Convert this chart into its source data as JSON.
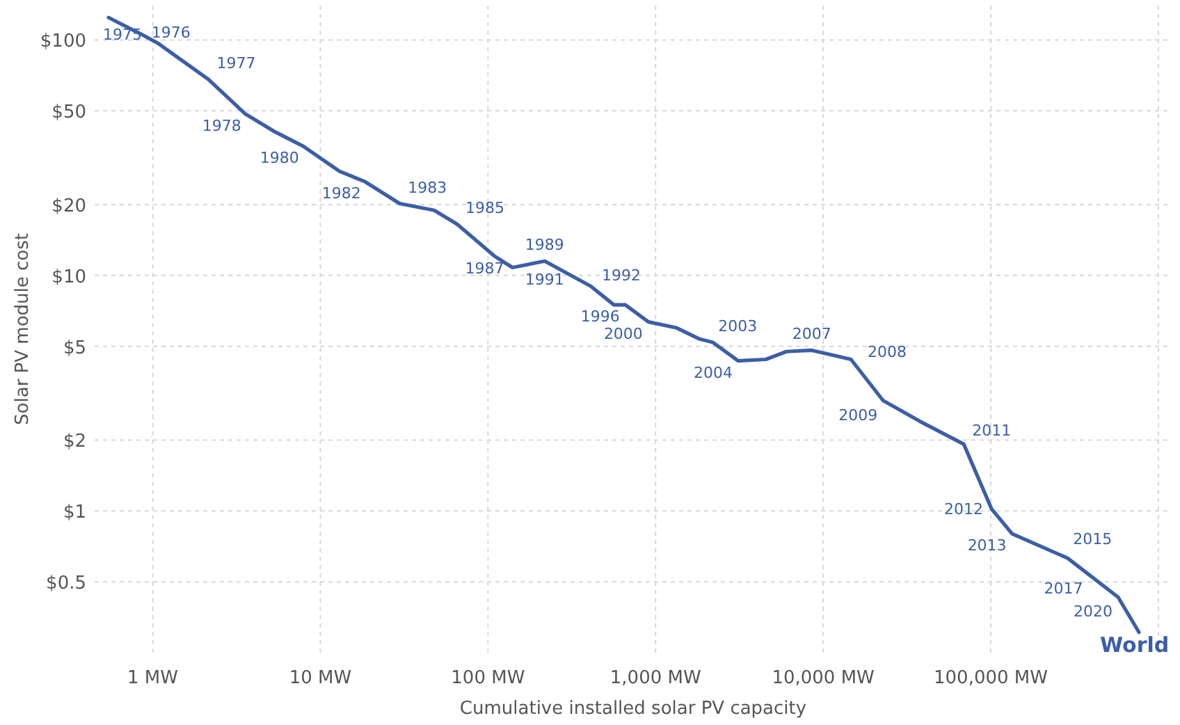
{
  "chart_data": {
    "type": "line",
    "log": "xy",
    "xlabel": "Cumulative installed solar PV capacity",
    "ylabel": "Solar PV module cost",
    "xlim": [
      0.45,
      1200000
    ],
    "ylim": [
      0.25,
      140
    ],
    "xticks": [
      {
        "value": 1,
        "label": "1 MW"
      },
      {
        "value": 10,
        "label": "10 MW"
      },
      {
        "value": 100,
        "label": "100 MW"
      },
      {
        "value": 1000,
        "label": "1,000 MW"
      },
      {
        "value": 10000,
        "label": "10,000 MW"
      },
      {
        "value": 100000,
        "label": "100,000 MW"
      },
      {
        "value": 1000000,
        "label": null
      }
    ],
    "yticks": [
      {
        "value": 0.5,
        "label": "$0.5"
      },
      {
        "value": 1,
        "label": "$1"
      },
      {
        "value": 2,
        "label": "$2"
      },
      {
        "value": 5,
        "label": "$5"
      },
      {
        "value": 10,
        "label": "$10"
      },
      {
        "value": 20,
        "label": "$20"
      },
      {
        "value": 50,
        "label": "$50"
      },
      {
        "value": 100,
        "label": "$100"
      }
    ],
    "grid": true,
    "legend": false,
    "series": [
      {
        "name": "World",
        "color": "#3c5ea8",
        "x": [
          0.545,
          0.86,
          1.07,
          2.15,
          3.57,
          5.4,
          7.9,
          13,
          18.5,
          29.7,
          47.8,
          65.5,
          109,
          140,
          218,
          410,
          564,
          660,
          906,
          1324,
          1815,
          2190,
          3110,
          4550,
          6040,
          8550,
          14650,
          22800,
          37800,
          69000,
          101000,
          134000,
          287000,
          575000,
          766000
        ],
        "values": [
          124.5,
          105.5,
          97,
          68,
          48.5,
          40.6,
          35.4,
          27.7,
          25,
          20.2,
          18.9,
          16.5,
          12.1,
          10.8,
          11.5,
          9.0,
          7.5,
          7.5,
          6.35,
          6.0,
          5.38,
          5.2,
          4.34,
          4.4,
          4.75,
          4.81,
          4.4,
          2.94,
          2.4,
          1.92,
          1.02,
          0.8,
          0.63,
          0.43,
          0.305
        ]
      }
    ],
    "annotations": [
      {
        "text": "1975",
        "x": 0.545,
        "y": 124.5
      },
      {
        "text": "1976",
        "x": 0.86,
        "y": 105.5
      },
      {
        "text": "1977",
        "x": 2.15,
        "y": 68
      },
      {
        "text": "1978",
        "x": 3.57,
        "y": 48.5
      },
      {
        "text": "1980",
        "x": 7.9,
        "y": 35.4
      },
      {
        "text": "1982",
        "x": 18.5,
        "y": 25
      },
      {
        "text": "1983",
        "x": 29.7,
        "y": 20.2
      },
      {
        "text": "1985",
        "x": 65.5,
        "y": 16.5
      },
      {
        "text": "1987",
        "x": 140,
        "y": 10.8
      },
      {
        "text": "1989",
        "x": 218,
        "y": 11.5
      },
      {
        "text": "1991",
        "x": 218,
        "y": 11.5
      },
      {
        "text": "1992",
        "x": 410,
        "y": 9.0
      },
      {
        "text": "1996",
        "x": 660,
        "y": 7.5
      },
      {
        "text": "2000",
        "x": 906,
        "y": 6.35
      },
      {
        "text": "2003",
        "x": 2190,
        "y": 5.2
      },
      {
        "text": "2004",
        "x": 3110,
        "y": 4.34
      },
      {
        "text": "2007",
        "x": 8550,
        "y": 4.81
      },
      {
        "text": "2008",
        "x": 14650,
        "y": 4.4
      },
      {
        "text": "2009",
        "x": 22800,
        "y": 2.94
      },
      {
        "text": "2011",
        "x": 69000,
        "y": 1.92
      },
      {
        "text": "2012",
        "x": 101000,
        "y": 1.02
      },
      {
        "text": "2013",
        "x": 134000,
        "y": 0.8
      },
      {
        "text": "2015",
        "x": 287000,
        "y": 0.63
      },
      {
        "text": "2017",
        "x": 383000,
        "y": 0.54
      },
      {
        "text": "2020",
        "x": 575000,
        "y": 0.43
      }
    ]
  }
}
